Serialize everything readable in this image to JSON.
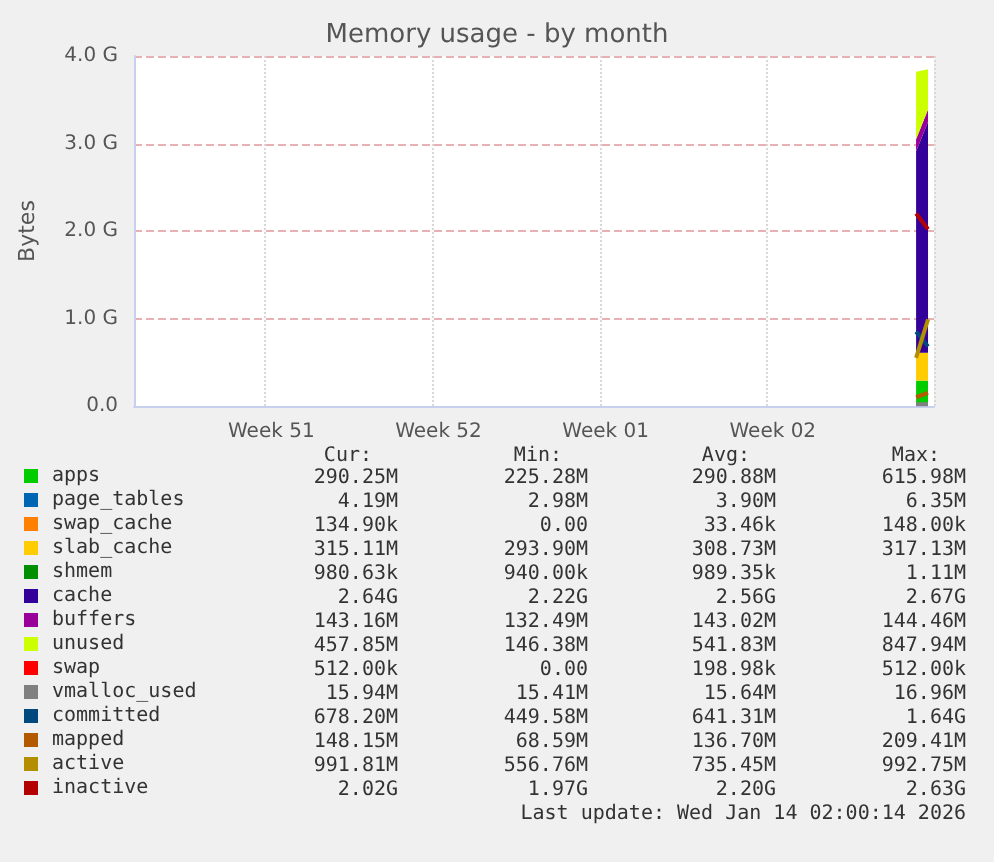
{
  "chart_data": {
    "type": "area",
    "title": "Memory usage - by month",
    "ylabel": "Bytes",
    "stacked": true,
    "categories": [
      null,
      null,
      null,
      null,
      null,
      null,
      null,
      null,
      null,
      null,
      null,
      "Week 51",
      null,
      null,
      null,
      null,
      null,
      null,
      null,
      null,
      null,
      null,
      null,
      null,
      null,
      "Week 52",
      null,
      null,
      null,
      null,
      null,
      null,
      null,
      null,
      null,
      null,
      null,
      null,
      null,
      "Week 01",
      null,
      null,
      null,
      null,
      null,
      null,
      null,
      null,
      null,
      null,
      null,
      null,
      null,
      "Week 02",
      null,
      null,
      null,
      null,
      null,
      null,
      null,
      null,
      null,
      null,
      null,
      null,
      null
    ],
    "ylim": [
      0,
      4
    ],
    "yticks": [
      {
        "value": 0,
        "label": "0.0"
      },
      {
        "value": 1,
        "label": "1.0 G"
      },
      {
        "value": 2,
        "label": "2.0 G"
      },
      {
        "value": 3,
        "label": "3.0 G"
      },
      {
        "value": 4,
        "label": "4.0 G"
      }
    ],
    "grid": true,
    "legend": "bottom left",
    "series": [
      {
        "name": "apps",
        "color": "#00cc00",
        "values": [
          null,
          null,
          null,
          null,
          null,
          null,
          null,
          null,
          null,
          null,
          null,
          null,
          null,
          null,
          null,
          null,
          null,
          null,
          null,
          null,
          null,
          null,
          null,
          null,
          null,
          null,
          null,
          null,
          null,
          null,
          null,
          null,
          null,
          null,
          null,
          null,
          null,
          null,
          null,
          null,
          null,
          null,
          null,
          null,
          null,
          null,
          null,
          null,
          null,
          null,
          null,
          null,
          null,
          null,
          null,
          null,
          null,
          null,
          null,
          null,
          null,
          null,
          null,
          null,
          null,
          0.29,
          0.29
        ]
      },
      {
        "name": "page_tables",
        "color": "#0066b3",
        "values": [
          null,
          null,
          null,
          null,
          null,
          null,
          null,
          null,
          null,
          null,
          null,
          null,
          null,
          null,
          null,
          null,
          null,
          null,
          null,
          null,
          null,
          null,
          null,
          null,
          null,
          null,
          null,
          null,
          null,
          null,
          null,
          null,
          null,
          null,
          null,
          null,
          null,
          null,
          null,
          null,
          null,
          null,
          null,
          null,
          null,
          null,
          null,
          null,
          null,
          null,
          null,
          null,
          null,
          null,
          null,
          null,
          null,
          null,
          null,
          null,
          null,
          null,
          null,
          null,
          null,
          null,
          null
        ]
      },
      {
        "name": "swap_cache",
        "color": "#ff8000",
        "values": [
          null,
          null,
          null,
          null,
          null,
          null,
          null,
          null,
          null,
          null,
          null,
          null,
          null,
          null,
          null,
          null,
          null,
          null,
          null,
          null,
          null,
          null,
          null,
          null,
          null,
          null,
          null,
          null,
          null,
          null,
          null,
          null,
          null,
          null,
          null,
          null,
          null,
          null,
          null,
          null,
          null,
          null,
          null,
          null,
          null,
          null,
          null,
          null,
          null,
          null,
          null,
          null,
          null,
          null,
          null,
          null,
          null,
          null,
          null,
          null,
          null,
          null,
          null,
          null,
          null,
          null,
          null
        ]
      },
      {
        "name": "slab_cache",
        "color": "#ffcc00",
        "values": [
          null,
          null,
          null,
          null,
          null,
          null,
          null,
          null,
          null,
          null,
          null,
          null,
          null,
          null,
          null,
          null,
          null,
          null,
          null,
          null,
          null,
          null,
          null,
          null,
          null,
          null,
          null,
          null,
          null,
          null,
          null,
          null,
          null,
          null,
          null,
          null,
          null,
          null,
          null,
          null,
          null,
          null,
          null,
          null,
          null,
          null,
          null,
          null,
          null,
          null,
          null,
          null,
          null,
          null,
          null,
          null,
          null,
          null,
          null,
          null,
          null,
          null,
          null,
          null,
          null,
          0.32,
          0.32
        ]
      },
      {
        "name": "shmem",
        "color": "#008f00",
        "values": [
          null,
          null,
          null,
          null,
          null,
          null,
          null,
          null,
          null,
          null,
          null,
          null,
          null,
          null,
          null,
          null,
          null,
          null,
          null,
          null,
          null,
          null,
          null,
          null,
          null,
          null,
          null,
          null,
          null,
          null,
          null,
          null,
          null,
          null,
          null,
          null,
          null,
          null,
          null,
          null,
          null,
          null,
          null,
          null,
          null,
          null,
          null,
          null,
          null,
          null,
          null,
          null,
          null,
          null,
          null,
          null,
          null,
          null,
          null,
          null,
          null,
          null,
          null,
          null,
          null,
          null,
          null
        ]
      },
      {
        "name": "cache",
        "color": "#330099",
        "values": [
          null,
          null,
          null,
          null,
          null,
          null,
          null,
          null,
          null,
          null,
          null,
          null,
          null,
          null,
          null,
          null,
          null,
          null,
          null,
          null,
          null,
          null,
          null,
          null,
          null,
          null,
          null,
          null,
          null,
          null,
          null,
          null,
          null,
          null,
          null,
          null,
          null,
          null,
          null,
          null,
          null,
          null,
          null,
          null,
          null,
          null,
          null,
          null,
          null,
          null,
          null,
          null,
          null,
          null,
          null,
          null,
          null,
          null,
          null,
          null,
          null,
          null,
          null,
          null,
          null,
          2.3,
          2.64
        ]
      },
      {
        "name": "buffers",
        "color": "#990099",
        "values": [
          null,
          null,
          null,
          null,
          null,
          null,
          null,
          null,
          null,
          null,
          null,
          null,
          null,
          null,
          null,
          null,
          null,
          null,
          null,
          null,
          null,
          null,
          null,
          null,
          null,
          null,
          null,
          null,
          null,
          null,
          null,
          null,
          null,
          null,
          null,
          null,
          null,
          null,
          null,
          null,
          null,
          null,
          null,
          null,
          null,
          null,
          null,
          null,
          null,
          null,
          null,
          null,
          null,
          null,
          null,
          null,
          null,
          null,
          null,
          null,
          null,
          null,
          null,
          null,
          null,
          0.14,
          0.14
        ]
      },
      {
        "name": "unused",
        "color": "#ccff00",
        "values": [
          null,
          null,
          null,
          null,
          null,
          null,
          null,
          null,
          null,
          null,
          null,
          null,
          null,
          null,
          null,
          null,
          null,
          null,
          null,
          null,
          null,
          null,
          null,
          null,
          null,
          null,
          null,
          null,
          null,
          null,
          null,
          null,
          null,
          null,
          null,
          null,
          null,
          null,
          null,
          null,
          null,
          null,
          null,
          null,
          null,
          null,
          null,
          null,
          null,
          null,
          null,
          null,
          null,
          null,
          null,
          null,
          null,
          null,
          null,
          null,
          null,
          null,
          null,
          null,
          null,
          0.77,
          0.46
        ]
      },
      {
        "name": "swap",
        "color": "#ff0000",
        "values": [
          null,
          null,
          null,
          null,
          null,
          null,
          null,
          null,
          null,
          null,
          null,
          null,
          null,
          null,
          null,
          null,
          null,
          null,
          null,
          null,
          null,
          null,
          null,
          null,
          null,
          null,
          null,
          null,
          null,
          null,
          null,
          null,
          null,
          null,
          null,
          null,
          null,
          null,
          null,
          null,
          null,
          null,
          null,
          null,
          null,
          null,
          null,
          null,
          null,
          null,
          null,
          null,
          null,
          null,
          null,
          null,
          null,
          null,
          null,
          null,
          null,
          null,
          null,
          null,
          null,
          null,
          null
        ]
      },
      {
        "name": "vmalloc_used",
        "color": "#808080",
        "type": "line",
        "values": [
          null,
          null,
          null,
          null,
          null,
          null,
          null,
          null,
          null,
          null,
          null,
          null,
          null,
          null,
          null,
          null,
          null,
          null,
          null,
          null,
          null,
          null,
          null,
          null,
          null,
          null,
          null,
          null,
          null,
          null,
          null,
          null,
          null,
          null,
          null,
          null,
          null,
          null,
          null,
          null,
          null,
          null,
          null,
          null,
          null,
          null,
          null,
          null,
          null,
          null,
          null,
          null,
          null,
          null,
          null,
          null,
          null,
          null,
          null,
          null,
          null,
          null,
          null,
          null,
          null,
          0.02,
          0.02
        ]
      },
      {
        "name": "committed",
        "color": "#00487d",
        "type": "line",
        "values": [
          null,
          null,
          null,
          null,
          null,
          null,
          null,
          null,
          null,
          null,
          null,
          null,
          null,
          null,
          null,
          null,
          null,
          null,
          null,
          null,
          null,
          null,
          null,
          null,
          null,
          null,
          null,
          null,
          null,
          null,
          null,
          null,
          null,
          null,
          null,
          null,
          null,
          null,
          null,
          null,
          null,
          null,
          null,
          null,
          null,
          null,
          null,
          null,
          null,
          null,
          null,
          null,
          null,
          null,
          null,
          null,
          null,
          null,
          null,
          null,
          null,
          null,
          null,
          null,
          null,
          0.85,
          0.68
        ]
      },
      {
        "name": "mapped",
        "color": "#b35a00",
        "type": "line",
        "values": [
          null,
          null,
          null,
          null,
          null,
          null,
          null,
          null,
          null,
          null,
          null,
          null,
          null,
          null,
          null,
          null,
          null,
          null,
          null,
          null,
          null,
          null,
          null,
          null,
          null,
          null,
          null,
          null,
          null,
          null,
          null,
          null,
          null,
          null,
          null,
          null,
          null,
          null,
          null,
          null,
          null,
          null,
          null,
          null,
          null,
          null,
          null,
          null,
          null,
          null,
          null,
          null,
          null,
          null,
          null,
          null,
          null,
          null,
          null,
          null,
          null,
          null,
          null,
          null,
          null,
          0.1,
          0.15
        ]
      },
      {
        "name": "active",
        "color": "#b38f00",
        "type": "line",
        "values": [
          null,
          null,
          null,
          null,
          null,
          null,
          null,
          null,
          null,
          null,
          null,
          null,
          null,
          null,
          null,
          null,
          null,
          null,
          null,
          null,
          null,
          null,
          null,
          null,
          null,
          null,
          null,
          null,
          null,
          null,
          null,
          null,
          null,
          null,
          null,
          null,
          null,
          null,
          null,
          null,
          null,
          null,
          null,
          null,
          null,
          null,
          null,
          null,
          null,
          null,
          null,
          null,
          null,
          null,
          null,
          null,
          null,
          null,
          null,
          null,
          null,
          null,
          null,
          null,
          null,
          0.55,
          0.99
        ]
      },
      {
        "name": "inactive",
        "color": "#b30000",
        "type": "line",
        "values": [
          null,
          null,
          null,
          null,
          null,
          null,
          null,
          null,
          null,
          null,
          null,
          null,
          null,
          null,
          null,
          null,
          null,
          null,
          null,
          null,
          null,
          null,
          null,
          null,
          null,
          null,
          null,
          null,
          null,
          null,
          null,
          null,
          null,
          null,
          null,
          null,
          null,
          null,
          null,
          null,
          null,
          null,
          null,
          null,
          null,
          null,
          null,
          null,
          null,
          null,
          null,
          null,
          null,
          null,
          null,
          null,
          null,
          null,
          null,
          null,
          null,
          null,
          null,
          null,
          null,
          2.2,
          2.02
        ]
      }
    ],
    "annotations": [
      "Cur:",
      "Min:",
      "Avg:",
      "Max:",
      "290.25M",
      "225.28M",
      "290.88M",
      "615.98M",
      "4.19M",
      "2.98M",
      "3.90M",
      "6.35M",
      "134.90k",
      "0.00",
      "33.46k",
      "148.00k",
      "315.11M",
      "293.90M",
      "308.73M",
      "317.13M",
      "980.63k",
      "940.00k",
      "989.35k",
      "1.11M",
      "2.64G",
      "2.22G",
      "2.56G",
      "2.67G",
      "143.16M",
      "132.49M",
      "143.02M",
      "144.46M",
      "457.85M",
      "146.38M",
      "541.83M",
      "847.94M",
      "512.00k",
      "0.00",
      "198.98k",
      "512.00k",
      "15.94M",
      "15.41M",
      "15.64M",
      "16.96M",
      "678.20M",
      "449.58M",
      "641.31M",
      "1.64G",
      "148.15M",
      "68.59M",
      "136.70M",
      "209.41M",
      "991.81M",
      "556.76M",
      "735.45M",
      "992.75M",
      "2.02G",
      "1.97G",
      "2.20G",
      "2.63G",
      "Last update: Wed Jan 14 02:00:14 2026"
    ]
  }
}
